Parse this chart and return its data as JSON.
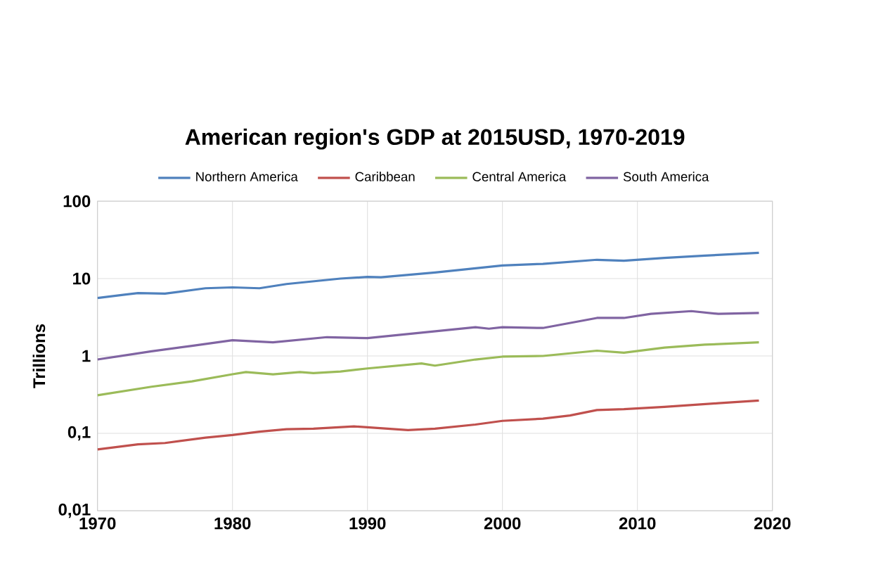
{
  "chart_data": {
    "type": "line",
    "title": "American region's GDP at 2015USD, 1970-2019",
    "ylabel": "Trillions",
    "log": "y",
    "grid": true,
    "legend": "top",
    "xlim": [
      1970,
      2020
    ],
    "xticks": [
      1970,
      1980,
      1990,
      2000,
      2010,
      2020
    ],
    "ylim": [
      0.01,
      100
    ],
    "yticks": [
      {
        "value": 0.01,
        "label": "0,01"
      },
      {
        "value": 0.1,
        "label": "0,1"
      },
      1,
      10,
      100
    ],
    "series": [
      {
        "name": "Northern America",
        "color": "#4f81bd",
        "x": [
          1970,
          1972,
          1973,
          1975,
          1978,
          1980,
          1982,
          1984,
          1988,
          1990,
          1991,
          1995,
          2000,
          2003,
          2007,
          2009,
          2012,
          2015,
          2019
        ],
        "values": [
          5.6,
          6.2,
          6.5,
          6.4,
          7.5,
          7.7,
          7.5,
          8.5,
          10.0,
          10.5,
          10.4,
          12.0,
          14.8,
          15.5,
          17.5,
          17.0,
          18.5,
          19.8,
          21.5
        ]
      },
      {
        "name": "Caribbean",
        "color": "#c0504d",
        "x": [
          1970,
          1973,
          1975,
          1978,
          1980,
          1982,
          1984,
          1986,
          1989,
          1990,
          1993,
          1995,
          1998,
          2000,
          2003,
          2005,
          2007,
          2009,
          2012,
          2016,
          2019
        ],
        "values": [
          0.062,
          0.072,
          0.075,
          0.088,
          0.095,
          0.105,
          0.113,
          0.115,
          0.123,
          0.12,
          0.11,
          0.115,
          0.13,
          0.145,
          0.155,
          0.17,
          0.2,
          0.205,
          0.22,
          0.245,
          0.265
        ]
      },
      {
        "name": "Central America",
        "color": "#9bbb59",
        "x": [
          1970,
          1974,
          1977,
          1980,
          1981,
          1983,
          1985,
          1986,
          1988,
          1990,
          1994,
          1995,
          1998,
          2000,
          2003,
          2007,
          2009,
          2012,
          2015,
          2019
        ],
        "values": [
          0.31,
          0.4,
          0.47,
          0.58,
          0.62,
          0.58,
          0.62,
          0.6,
          0.63,
          0.69,
          0.8,
          0.75,
          0.9,
          0.98,
          1.0,
          1.17,
          1.1,
          1.28,
          1.4,
          1.5
        ]
      },
      {
        "name": "South America",
        "color": "#8064a2",
        "x": [
          1970,
          1974,
          1977,
          1980,
          1983,
          1987,
          1990,
          1994,
          1998,
          1999,
          2000,
          2003,
          2007,
          2009,
          2011,
          2014,
          2016,
          2019
        ],
        "values": [
          0.9,
          1.15,
          1.35,
          1.6,
          1.5,
          1.75,
          1.7,
          2.0,
          2.35,
          2.25,
          2.35,
          2.3,
          3.1,
          3.1,
          3.5,
          3.8,
          3.5,
          3.6
        ]
      }
    ]
  }
}
